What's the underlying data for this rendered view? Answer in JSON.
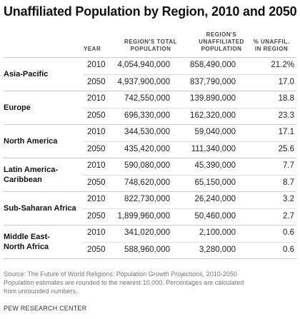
{
  "title": "Unaffiliated Population by Region, 2010 and 2050",
  "columns": {
    "year": "YEAR",
    "total_line1": "REGION'S TOTAL",
    "total_line2": "POPULATION",
    "unaff_line1": "REGION'S",
    "unaff_line2": "UNAFFILIATED",
    "unaff_line3": "POPULATION",
    "pct_line1": "% UNAFFIL.",
    "pct_line2": "IN REGION"
  },
  "regions": [
    {
      "name_line1": "Asia-Pacific",
      "name_line2": "",
      "rows": [
        {
          "year": "2010",
          "total": "4,054,940,000",
          "unaffiliated": "858,490,000",
          "pct": "21.2%"
        },
        {
          "year": "2050",
          "total": "4,937,900,000",
          "unaffiliated": "837,790,000",
          "pct": "17.0"
        }
      ]
    },
    {
      "name_line1": "Europe",
      "name_line2": "",
      "rows": [
        {
          "year": "2010",
          "total": "742,550,000",
          "unaffiliated": "139,890,000",
          "pct": "18.8"
        },
        {
          "year": "2050",
          "total": "696,330,000",
          "unaffiliated": "162,320,000",
          "pct": "23.3"
        }
      ]
    },
    {
      "name_line1": "North America",
      "name_line2": "",
      "rows": [
        {
          "year": "2010",
          "total": "344,530,000",
          "unaffiliated": "59,040,000",
          "pct": "17.1"
        },
        {
          "year": "2050",
          "total": "435,420,000",
          "unaffiliated": "111,340,000",
          "pct": "25.6"
        }
      ]
    },
    {
      "name_line1": "Latin America-",
      "name_line2": "Caribbean",
      "rows": [
        {
          "year": "2010",
          "total": "590,080,000",
          "unaffiliated": "45,390,000",
          "pct": "7.7"
        },
        {
          "year": "2050",
          "total": "748,620,000",
          "unaffiliated": "65,150,000",
          "pct": "8.7"
        }
      ]
    },
    {
      "name_line1": "Sub-Saharan Africa",
      "name_line2": "",
      "rows": [
        {
          "year": "2010",
          "total": "822,730,000",
          "unaffiliated": "26,240,000",
          "pct": "3.2"
        },
        {
          "year": "2050",
          "total": "1,899,960,000",
          "unaffiliated": "50,460,000",
          "pct": "2.7"
        }
      ]
    },
    {
      "name_line1": "Middle East-",
      "name_line2": "North Africa",
      "rows": [
        {
          "year": "2010",
          "total": "341,020,000",
          "unaffiliated": "2,100,000",
          "pct": "0.6"
        },
        {
          "year": "2050",
          "total": "588,960,000",
          "unaffiliated": "3,280,000",
          "pct": "0.6"
        }
      ]
    }
  ],
  "source_line1": "Source: The Future of World Religions: Population Growth Projections, 2010-2050",
  "source_line2": "Population estimates are rounded to the nearest 10,000. Percentages are calculated",
  "source_line3": "from unrounded numbers.",
  "footer": "PEW RESEARCH CENTER"
}
